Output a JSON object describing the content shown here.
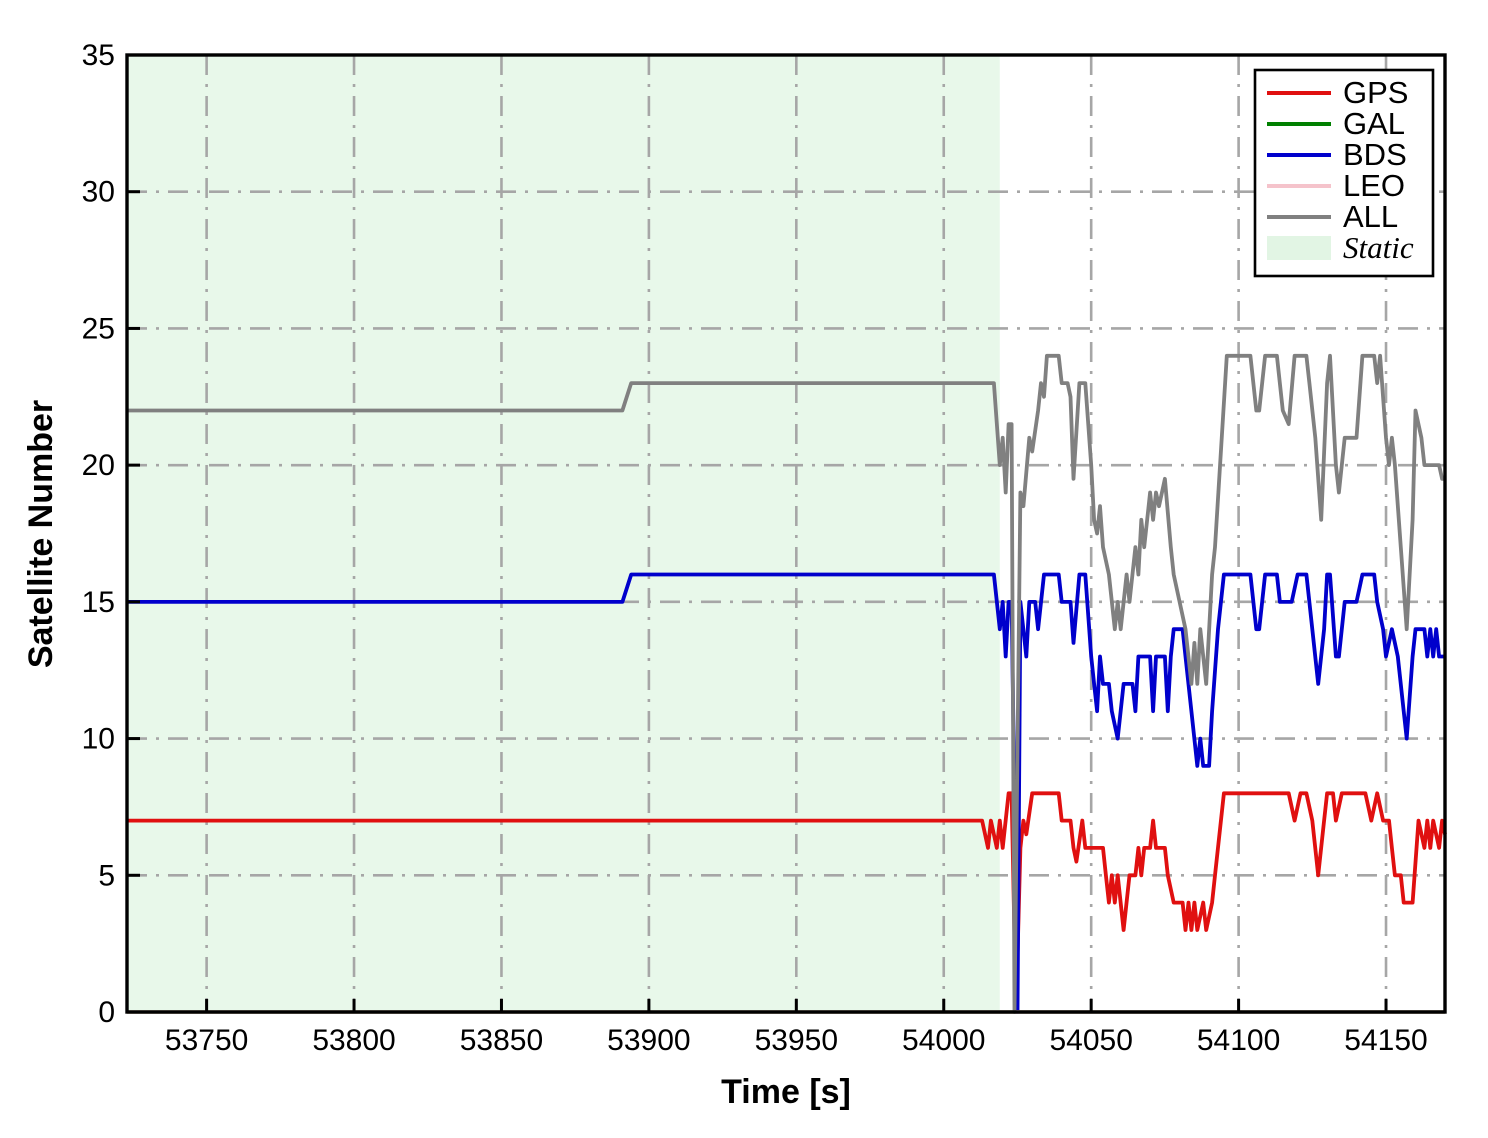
{
  "figure": {
    "background": "#ffffff",
    "axes": {
      "xlabel": "Time [s]",
      "ylabel": "Satellite Number",
      "xlim": [
        53723,
        54170
      ],
      "ylim": [
        0,
        35
      ],
      "xticks": [
        53750,
        53800,
        53850,
        53900,
        53950,
        54000,
        54050,
        54100,
        54150
      ],
      "yticks": [
        0,
        5,
        10,
        15,
        20,
        25,
        30,
        35
      ],
      "grid": true,
      "grid_style": "dash-dot",
      "grid_color": "#a6a6a6",
      "spine_color": "#000000"
    },
    "legend": {
      "position": "top-right",
      "items": [
        {
          "label": "GPS",
          "swatch": "line",
          "color": "#e01010",
          "italic": false
        },
        {
          "label": "GAL",
          "swatch": "line",
          "color": "#008000",
          "italic": false
        },
        {
          "label": "BDS",
          "swatch": "line",
          "color": "#0000cc",
          "italic": false
        },
        {
          "label": "LEO",
          "swatch": "line",
          "color": "#f5c3cb",
          "italic": false
        },
        {
          "label": "ALL",
          "swatch": "line",
          "color": "#808080",
          "italic": false
        },
        {
          "label": "Static",
          "swatch": "patch",
          "color": "#e2f5e4",
          "italic": true
        }
      ]
    }
  },
  "chart_data": {
    "type": "line",
    "title": "",
    "xlabel": "Time [s]",
    "ylabel": "Satellite Number",
    "xlim": [
      53723,
      54170
    ],
    "ylim": [
      0,
      35
    ],
    "xticks": [
      53750,
      53800,
      53850,
      53900,
      53950,
      54000,
      54050,
      54100,
      54150
    ],
    "yticks": [
      0,
      5,
      10,
      15,
      20,
      25,
      30,
      35
    ],
    "grid": true,
    "legend_position": "upper right",
    "static_region": {
      "label": "Static",
      "x_start": 53723,
      "x_end": 54019,
      "color": "#e8f8ea"
    },
    "series": [
      {
        "name": "GPS",
        "color": "#e01010",
        "width": 3.8,
        "points": [
          [
            53723,
            7
          ],
          [
            54013,
            7
          ],
          [
            54015,
            6
          ],
          [
            54016,
            7
          ],
          [
            54018,
            6
          ],
          [
            54019,
            7
          ],
          [
            54020,
            6
          ],
          [
            54022,
            8
          ],
          [
            54023,
            8
          ],
          [
            54024.5,
            0
          ],
          [
            54026,
            6
          ],
          [
            54027,
            7
          ],
          [
            54028,
            6.5
          ],
          [
            54030,
            8
          ],
          [
            54039,
            8
          ],
          [
            54040,
            7
          ],
          [
            54043,
            7
          ],
          [
            54044,
            6
          ],
          [
            54045,
            5.5
          ],
          [
            54047,
            7
          ],
          [
            54048,
            6
          ],
          [
            54054,
            6
          ],
          [
            54055,
            5
          ],
          [
            54056,
            4
          ],
          [
            54057,
            5
          ],
          [
            54058,
            4
          ],
          [
            54059,
            5
          ],
          [
            54061,
            3
          ],
          [
            54063,
            5
          ],
          [
            54065,
            5
          ],
          [
            54066,
            6
          ],
          [
            54067,
            5
          ],
          [
            54068,
            6
          ],
          [
            54070,
            6
          ],
          [
            54071,
            7
          ],
          [
            54072,
            6
          ],
          [
            54075,
            6
          ],
          [
            54076,
            5
          ],
          [
            54078,
            4
          ],
          [
            54081,
            4
          ],
          [
            54082,
            3
          ],
          [
            54083,
            4
          ],
          [
            54084,
            3
          ],
          [
            54085,
            4
          ],
          [
            54086,
            3
          ],
          [
            54088,
            4
          ],
          [
            54089,
            3
          ],
          [
            54091,
            4
          ],
          [
            54092,
            5
          ],
          [
            54095,
            8
          ],
          [
            54117,
            8
          ],
          [
            54119,
            7
          ],
          [
            54121,
            8
          ],
          [
            54123,
            8
          ],
          [
            54125,
            7
          ],
          [
            54127,
            5
          ],
          [
            54129,
            7
          ],
          [
            54130,
            8
          ],
          [
            54132,
            8
          ],
          [
            54133,
            7
          ],
          [
            54135,
            8
          ],
          [
            54143,
            8
          ],
          [
            54145,
            7
          ],
          [
            54147,
            8
          ],
          [
            54149,
            7
          ],
          [
            54151,
            7
          ],
          [
            54152,
            6
          ],
          [
            54153,
            5
          ],
          [
            54155,
            5
          ],
          [
            54156,
            4
          ],
          [
            54159,
            4
          ],
          [
            54161,
            7
          ],
          [
            54163,
            6
          ],
          [
            54164,
            7
          ],
          [
            54165,
            6
          ],
          [
            54166,
            7
          ],
          [
            54168,
            6
          ],
          [
            54169,
            7
          ],
          [
            54170,
            6.5
          ]
        ]
      },
      {
        "name": "GAL",
        "color": "#008000",
        "width": 3.8,
        "points": [
          [
            53723,
            0
          ],
          [
            54170,
            0
          ]
        ]
      },
      {
        "name": "BDS",
        "color": "#0000cc",
        "width": 3.8,
        "points": [
          [
            53723,
            15
          ],
          [
            53891,
            15
          ],
          [
            53894,
            16
          ],
          [
            54017,
            16
          ],
          [
            54019,
            14
          ],
          [
            54020,
            15
          ],
          [
            54021,
            13
          ],
          [
            54022,
            15
          ],
          [
            54023,
            15
          ],
          [
            54025,
            0
          ],
          [
            54026,
            15
          ],
          [
            54028,
            13
          ],
          [
            54029,
            15
          ],
          [
            54031,
            15
          ],
          [
            54032,
            14
          ],
          [
            54034,
            16
          ],
          [
            54039,
            16
          ],
          [
            54040,
            15
          ],
          [
            54043,
            15
          ],
          [
            54044,
            13.5
          ],
          [
            54046,
            16
          ],
          [
            54048,
            16
          ],
          [
            54050,
            13
          ],
          [
            54051,
            12
          ],
          [
            54052,
            11
          ],
          [
            54053,
            13
          ],
          [
            54054,
            12
          ],
          [
            54056,
            12
          ],
          [
            54057,
            11
          ],
          [
            54059,
            10
          ],
          [
            54061,
            12
          ],
          [
            54064,
            12
          ],
          [
            54065,
            11
          ],
          [
            54066,
            13
          ],
          [
            54070,
            13
          ],
          [
            54071,
            11
          ],
          [
            54072,
            13
          ],
          [
            54075,
            13
          ],
          [
            54076,
            11
          ],
          [
            54077,
            13
          ],
          [
            54078,
            14
          ],
          [
            54081,
            14
          ],
          [
            54082,
            13
          ],
          [
            54084,
            11
          ],
          [
            54086,
            9
          ],
          [
            54087,
            10
          ],
          [
            54088,
            9
          ],
          [
            54090,
            9
          ],
          [
            54091,
            11
          ],
          [
            54093,
            14
          ],
          [
            54095,
            16
          ],
          [
            54104,
            16
          ],
          [
            54106,
            14
          ],
          [
            54107,
            14
          ],
          [
            54109,
            16
          ],
          [
            54113,
            16
          ],
          [
            54114,
            15
          ],
          [
            54117,
            15
          ],
          [
            54118,
            15
          ],
          [
            54120,
            16
          ],
          [
            54123,
            16
          ],
          [
            54125,
            14
          ],
          [
            54127,
            12
          ],
          [
            54129,
            14
          ],
          [
            54130,
            16
          ],
          [
            54131,
            16
          ],
          [
            54133,
            13
          ],
          [
            54134,
            13
          ],
          [
            54136,
            15
          ],
          [
            54140,
            15
          ],
          [
            54142,
            16
          ],
          [
            54146,
            16
          ],
          [
            54147,
            15
          ],
          [
            54149,
            14
          ],
          [
            54150,
            13
          ],
          [
            54152,
            14
          ],
          [
            54154,
            13
          ],
          [
            54156,
            11
          ],
          [
            54157,
            10
          ],
          [
            54159,
            13
          ],
          [
            54160,
            14
          ],
          [
            54163,
            14
          ],
          [
            54164,
            13
          ],
          [
            54165,
            14
          ],
          [
            54166,
            13
          ],
          [
            54167,
            14
          ],
          [
            54168,
            13
          ],
          [
            54170,
            13
          ]
        ]
      },
      {
        "name": "LEO",
        "color": "#f5c3cb",
        "width": 3.8,
        "points": [
          [
            53723,
            0
          ],
          [
            54170,
            0
          ]
        ]
      },
      {
        "name": "ALL",
        "color": "#808080",
        "width": 3.8,
        "points": [
          [
            53723,
            22
          ],
          [
            53891,
            22
          ],
          [
            53894,
            23
          ],
          [
            54017,
            23
          ],
          [
            54019,
            20
          ],
          [
            54020,
            21
          ],
          [
            54021,
            19
          ],
          [
            54022,
            21.5
          ],
          [
            54023,
            21.5
          ],
          [
            54024,
            0
          ],
          [
            54026,
            19
          ],
          [
            54027,
            18.5
          ],
          [
            54029,
            21
          ],
          [
            54030,
            20.5
          ],
          [
            54032,
            22
          ],
          [
            54033,
            23
          ],
          [
            54034,
            22.5
          ],
          [
            54035,
            24
          ],
          [
            54039,
            24
          ],
          [
            54040,
            23
          ],
          [
            54042,
            23
          ],
          [
            54043,
            22.5
          ],
          [
            54044,
            19.5
          ],
          [
            54046,
            23
          ],
          [
            54048,
            23
          ],
          [
            54050,
            20
          ],
          [
            54051,
            18
          ],
          [
            54052,
            17.5
          ],
          [
            54053,
            18.5
          ],
          [
            54054,
            17
          ],
          [
            54056,
            16
          ],
          [
            54058,
            14
          ],
          [
            54059,
            15
          ],
          [
            54060,
            14
          ],
          [
            54062,
            16
          ],
          [
            54063,
            15
          ],
          [
            54065,
            17
          ],
          [
            54066,
            16
          ],
          [
            54067,
            18
          ],
          [
            54068,
            17
          ],
          [
            54070,
            19
          ],
          [
            54071,
            18
          ],
          [
            54072,
            19
          ],
          [
            54073,
            18.5
          ],
          [
            54075,
            19.5
          ],
          [
            54077,
            17
          ],
          [
            54078,
            16
          ],
          [
            54080,
            15
          ],
          [
            54082,
            14
          ],
          [
            54084,
            12
          ],
          [
            54085,
            13.5
          ],
          [
            54086,
            12
          ],
          [
            54087,
            14
          ],
          [
            54089,
            12
          ],
          [
            54091,
            16
          ],
          [
            54092,
            17
          ],
          [
            54096,
            24
          ],
          [
            54104,
            24
          ],
          [
            54106,
            22
          ],
          [
            54107,
            22
          ],
          [
            54109,
            24
          ],
          [
            54113,
            24
          ],
          [
            54115,
            22
          ],
          [
            54117,
            21.5
          ],
          [
            54119,
            24
          ],
          [
            54123,
            24
          ],
          [
            54124,
            23
          ],
          [
            54126,
            21
          ],
          [
            54128,
            18
          ],
          [
            54130,
            23
          ],
          [
            54131,
            24
          ],
          [
            54133,
            20
          ],
          [
            54134,
            19
          ],
          [
            54136,
            21
          ],
          [
            54140,
            21
          ],
          [
            54142,
            24
          ],
          [
            54146,
            24
          ],
          [
            54147,
            23
          ],
          [
            54148,
            24
          ],
          [
            54150,
            21
          ],
          [
            54151,
            20
          ],
          [
            54152,
            21
          ],
          [
            54153,
            20
          ],
          [
            54155,
            17
          ],
          [
            54157,
            14
          ],
          [
            54159,
            18
          ],
          [
            54160,
            22
          ],
          [
            54162,
            21
          ],
          [
            54163,
            20
          ],
          [
            54168,
            20
          ],
          [
            54169,
            19.5
          ],
          [
            54170,
            19.5
          ]
        ]
      }
    ]
  }
}
